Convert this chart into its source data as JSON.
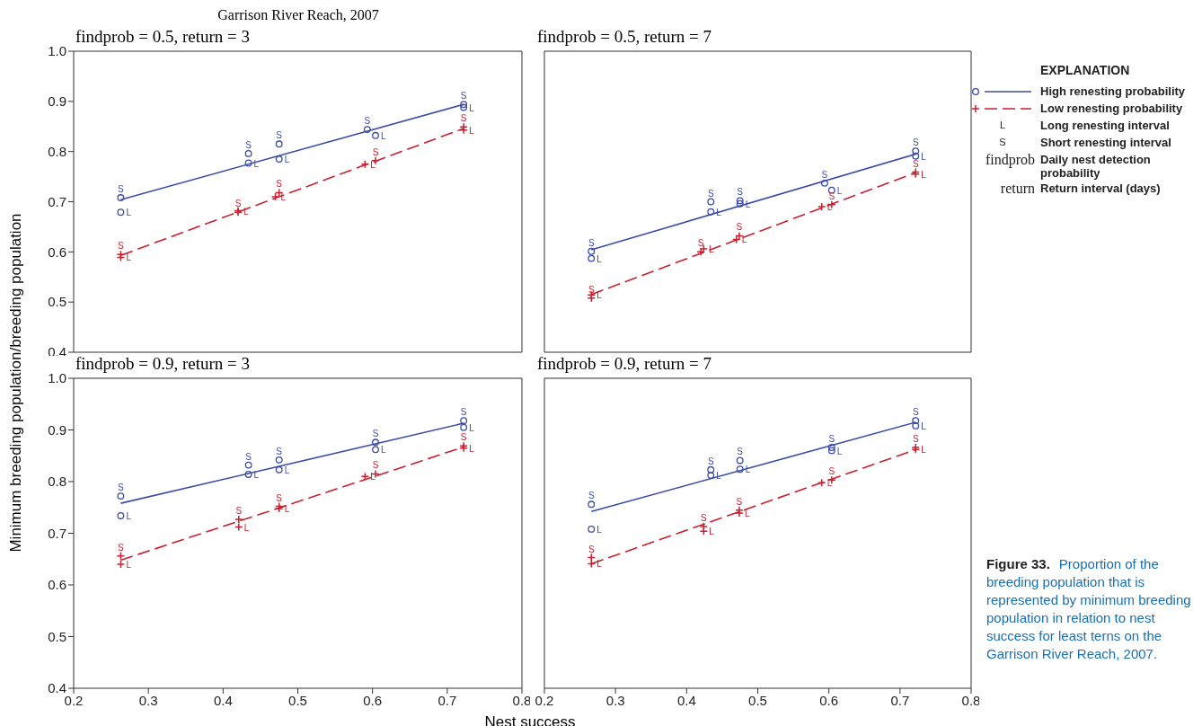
{
  "chart_data": [
    {
      "type": "scatter",
      "title": "findprob = 0.5, return = 3",
      "ylabel": "Minimum breeding population/breeding population",
      "annotations": [
        "Garrison River Reach, 2007"
      ],
      "xlim": [
        0.2,
        0.8
      ],
      "xticks": [
        0.2,
        0.3,
        0.4,
        0.5,
        0.6,
        0.7,
        0.8
      ],
      "ylim": [
        0.4,
        1.0
      ],
      "yticks": [
        0.4,
        0.5,
        0.6,
        0.7,
        0.8,
        0.9,
        {
          "value": 1.0,
          "label": "1.0"
        }
      ],
      "tick_labels": "y",
      "series": [
        {
          "type": "scatter",
          "marker": "circle",
          "color": "#3b4ba8",
          "x": [
            0.263,
            0.263,
            0.434,
            0.434,
            0.475,
            0.475,
            0.593,
            0.604,
            0.722,
            0.722
          ],
          "values": [
            0.708,
            0.679,
            0.796,
            0.777,
            0.815,
            0.785,
            0.844,
            0.832,
            0.894,
            0.888
          ],
          "value_labels": [
            "S",
            "L",
            "S",
            "L",
            "S",
            "L",
            "S",
            "L",
            "S",
            "L"
          ]
        },
        {
          "type": "line",
          "line_style": "solid",
          "color": "#3b4ba8",
          "x": [
            0.263,
            0.722
          ],
          "values": [
            0.704,
            0.894
          ]
        },
        {
          "type": "scatter",
          "marker": "cross",
          "color": "#c8202f",
          "x": [
            0.263,
            0.263,
            0.42,
            0.42,
            0.475,
            0.47,
            0.604,
            0.59,
            0.722,
            0.722
          ],
          "values": [
            0.595,
            0.589,
            0.679,
            0.682,
            0.718,
            0.71,
            0.782,
            0.775,
            0.849,
            0.843
          ],
          "value_labels": [
            "S",
            "L",
            "S",
            "L",
            "S",
            "L",
            "S",
            "L",
            "S",
            "L"
          ]
        },
        {
          "type": "line",
          "line_style": "dashed",
          "color": "#c8202f",
          "x": [
            0.263,
            0.722
          ],
          "values": [
            0.593,
            0.846
          ]
        }
      ]
    },
    {
      "type": "scatter",
      "title": "findprob = 0.5, return = 7",
      "legend": "right",
      "legend_title": "EXPLANATION",
      "annotations": [
        "L",
        "Long renesting interval",
        "S",
        "Short renesting interval",
        "findprob",
        "Daily nest detection probability",
        "return",
        "Return interval (days)"
      ],
      "xlim": [
        0.2,
        0.8
      ],
      "xticks": [
        0.2,
        0.3,
        0.4,
        0.5,
        0.6,
        0.7,
        0.8
      ],
      "ylim": [
        0.4,
        1.0
      ],
      "yticks": [
        0.4,
        0.5,
        0.6,
        0.7,
        0.8,
        0.9,
        1.0
      ],
      "tick_labels": false,
      "series": [
        {
          "name": "High renesting probability",
          "type": "scatter",
          "marker": "circle",
          "color": "#3b4ba8",
          "x": [
            0.266,
            0.266,
            0.434,
            0.434,
            0.475,
            0.475,
            0.594,
            0.604,
            0.722,
            0.722
          ],
          "values": [
            0.601,
            0.587,
            0.7,
            0.68,
            0.702,
            0.696,
            0.737,
            0.723,
            0.801,
            0.791
          ],
          "value_labels": [
            "S",
            "L",
            "S",
            "L",
            "S",
            "L",
            "S",
            "L",
            "S",
            "L"
          ]
        },
        {
          "type": "line",
          "line_style": "solid",
          "color": "#3b4ba8",
          "x": [
            0.266,
            0.722
          ],
          "values": [
            0.604,
            0.795
          ]
        },
        {
          "name": "Low renesting probability",
          "type": "scatter",
          "marker": "cross",
          "color": "#c8202f",
          "x": [
            0.266,
            0.266,
            0.42,
            0.424,
            0.474,
            0.47,
            0.604,
            0.59,
            0.722,
            0.722
          ],
          "values": [
            0.508,
            0.514,
            0.6,
            0.606,
            0.632,
            0.625,
            0.694,
            0.69,
            0.759,
            0.755
          ],
          "value_labels": [
            "S",
            "L",
            "S",
            "L",
            "S",
            "L",
            "S",
            "L",
            "S",
            "L"
          ]
        },
        {
          "type": "line",
          "line_style": "dashed",
          "color": "#c8202f",
          "x": [
            0.266,
            0.722
          ],
          "values": [
            0.515,
            0.758
          ]
        }
      ]
    },
    {
      "type": "scatter",
      "title": "findprob = 0.9, return = 3",
      "xlabel": "Nest success",
      "xlim": [
        0.2,
        0.8
      ],
      "xticks": [
        0.2,
        0.3,
        0.4,
        0.5,
        0.6,
        0.7,
        0.8
      ],
      "ylim": [
        0.4,
        1.0
      ],
      "yticks": [
        0.4,
        0.5,
        0.6,
        0.7,
        0.8,
        0.9,
        {
          "value": 1.0,
          "label": "1.0"
        }
      ],
      "series": [
        {
          "type": "scatter",
          "marker": "circle",
          "color": "#3b4ba8",
          "x": [
            0.263,
            0.263,
            0.434,
            0.434,
            0.475,
            0.475,
            0.604,
            0.604,
            0.722,
            0.722
          ],
          "values": [
            0.772,
            0.734,
            0.832,
            0.814,
            0.842,
            0.823,
            0.876,
            0.862,
            0.918,
            0.905
          ],
          "value_labels": [
            "S",
            "L",
            "S",
            "L",
            "S",
            "L",
            "S",
            "L",
            "S",
            "L"
          ]
        },
        {
          "type": "line",
          "line_style": "solid",
          "color": "#3b4ba8",
          "x": [
            0.263,
            0.722
          ],
          "values": [
            0.758,
            0.913
          ]
        },
        {
          "type": "scatter",
          "marker": "cross",
          "color": "#c8202f",
          "x": [
            0.263,
            0.263,
            0.421,
            0.421,
            0.475,
            0.475,
            0.604,
            0.59,
            0.722,
            0.722
          ],
          "values": [
            0.656,
            0.64,
            0.727,
            0.712,
            0.752,
            0.748,
            0.815,
            0.81,
            0.869,
            0.865
          ],
          "value_labels": [
            "S",
            "L",
            "S",
            "L",
            "S",
            "L",
            "S",
            "L",
            "S",
            "L"
          ]
        },
        {
          "type": "line",
          "line_style": "dashed",
          "color": "#c8202f",
          "x": [
            0.263,
            0.722
          ],
          "values": [
            0.648,
            0.867
          ]
        }
      ]
    },
    {
      "type": "scatter",
      "title": "findprob = 0.9, return = 7",
      "annotations": [
        "Figure 33.",
        "Proportion of the breeding population that is represented by minimum breeding population in relation to nest success for least terns on the Garrison River Reach, 2007."
      ],
      "xlim": [
        0.2,
        0.8
      ],
      "xticks": [
        0.2,
        0.3,
        0.4,
        0.5,
        0.6,
        0.7,
        0.8
      ],
      "ylim": [
        0.4,
        1.0
      ],
      "yticks": [
        0.4,
        0.5,
        0.6,
        0.7,
        0.8,
        0.9,
        1.0
      ],
      "tick_labels": "x",
      "series": [
        {
          "type": "scatter",
          "marker": "circle",
          "color": "#3b4ba8",
          "x": [
            0.266,
            0.266,
            0.434,
            0.434,
            0.475,
            0.475,
            0.604,
            0.604,
            0.722,
            0.722
          ],
          "values": [
            0.756,
            0.708,
            0.823,
            0.812,
            0.841,
            0.824,
            0.866,
            0.86,
            0.918,
            0.908
          ],
          "value_labels": [
            "S",
            "L",
            "S",
            "L",
            "S",
            "L",
            "S",
            "L",
            "S",
            "L"
          ]
        },
        {
          "type": "line",
          "line_style": "solid",
          "color": "#3b4ba8",
          "x": [
            0.266,
            0.722
          ],
          "values": [
            0.742,
            0.915
          ]
        },
        {
          "type": "scatter",
          "marker": "cross",
          "color": "#c8202f",
          "x": [
            0.266,
            0.266,
            0.424,
            0.424,
            0.474,
            0.474,
            0.604,
            0.59,
            0.722,
            0.722
          ],
          "values": [
            0.653,
            0.641,
            0.713,
            0.704,
            0.745,
            0.739,
            0.803,
            0.798,
            0.866,
            0.862
          ],
          "value_labels": [
            "S",
            "L",
            "S",
            "L",
            "S",
            "L",
            "S",
            "L",
            "S",
            "L"
          ]
        },
        {
          "type": "line",
          "line_style": "dashed",
          "color": "#c8202f",
          "x": [
            0.266,
            0.722
          ],
          "values": [
            0.641,
            0.862
          ]
        }
      ]
    }
  ]
}
